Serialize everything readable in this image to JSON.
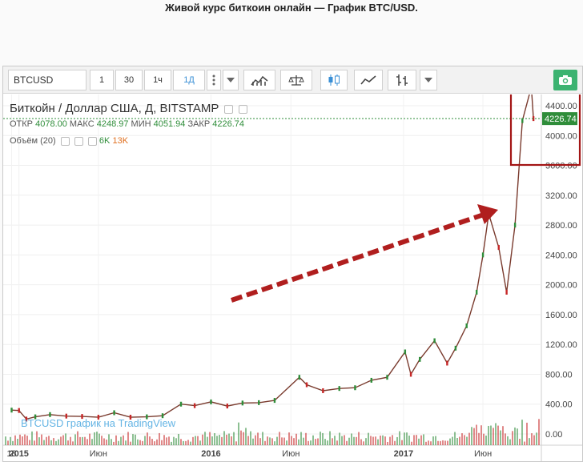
{
  "page_title": "Живой курс биткоин онлайн — График BTC/USD.",
  "toolbar": {
    "symbol": "BTCUSD",
    "intervals": [
      "1",
      "30",
      "1ч",
      "1Д"
    ],
    "active_interval": "1Д",
    "more_icon": "vertical-dots-icon",
    "indicators_icon": "indicators-icon",
    "compare_icon": "scales-icon",
    "styles": [
      "candles-icon",
      "area-icon",
      "bars-icon"
    ],
    "snapshot_icon": "camera-icon"
  },
  "legend": {
    "title": "Биткойн / Доллар США, Д, BITSTAMP",
    "ohlc_labels": [
      "ОТКР",
      "МАКС",
      "МИН",
      "ЗАКР"
    ],
    "ohlc_values": [
      "4078.00",
      "4248.97",
      "4051.94",
      "4226.74"
    ],
    "volume_label": "Объём (20)",
    "volume_values": [
      "6K",
      "13K"
    ]
  },
  "watermark": "BTCUSD график на TradingView",
  "colors": {
    "up": "#2f8d3a",
    "down": "#c62828",
    "accent": "#3a8fd6",
    "arrow": "#b01e1e",
    "highlight_box": "#a31515",
    "last_price": "#2f8d3a"
  },
  "chart_data": {
    "type": "line",
    "title": "Биткойн / Доллар США, Д, BITSTAMP",
    "x_ticks": [
      "18",
      "2015",
      "Июн",
      "2016",
      "Июн",
      "2017",
      "Июн"
    ],
    "y_ticks": [
      0,
      400,
      800,
      1200,
      1600,
      2000,
      2400,
      2800,
      3200,
      3600,
      4000,
      4400
    ],
    "y_tick_labels": [
      "0.00",
      "400.00",
      "800.00",
      "1200.00",
      "1600.00",
      "2000.00",
      "2400.00",
      "2800.00",
      "3200.00",
      "3600.00",
      "4000.00",
      "4400.00"
    ],
    "ylim": [
      -150,
      4550
    ],
    "last_price": 4226.74,
    "last_price_label": "4226.74",
    "x": [
      "2014-12-18",
      "2015-01-01",
      "2015-01-15",
      "2015-02-01",
      "2015-03-01",
      "2015-04-01",
      "2015-05-01",
      "2015-06-01",
      "2015-07-01",
      "2015-08-01",
      "2015-09-01",
      "2015-10-01",
      "2015-11-05",
      "2015-12-01",
      "2016-01-01",
      "2016-02-01",
      "2016-03-01",
      "2016-04-01",
      "2016-05-01",
      "2016-06-17",
      "2016-07-01",
      "2016-08-01",
      "2016-09-01",
      "2016-10-01",
      "2016-11-01",
      "2016-12-01",
      "2017-01-04",
      "2017-01-15",
      "2017-02-01",
      "2017-03-01",
      "2017-03-25",
      "2017-04-10",
      "2017-05-01",
      "2017-05-20",
      "2017-06-01",
      "2017-06-12",
      "2017-07-01",
      "2017-07-16",
      "2017-08-01",
      "2017-08-15",
      "2017-09-01",
      "2017-09-05"
    ],
    "values": [
      320,
      315,
      200,
      230,
      260,
      240,
      235,
      225,
      285,
      225,
      230,
      245,
      400,
      380,
      430,
      375,
      415,
      420,
      450,
      760,
      660,
      580,
      610,
      620,
      720,
      760,
      1100,
      800,
      1000,
      1250,
      950,
      1150,
      1450,
      1900,
      2400,
      2950,
      2500,
      1900,
      2800,
      4200,
      4650,
      4226.74
    ],
    "volume_max_label": "13K"
  }
}
